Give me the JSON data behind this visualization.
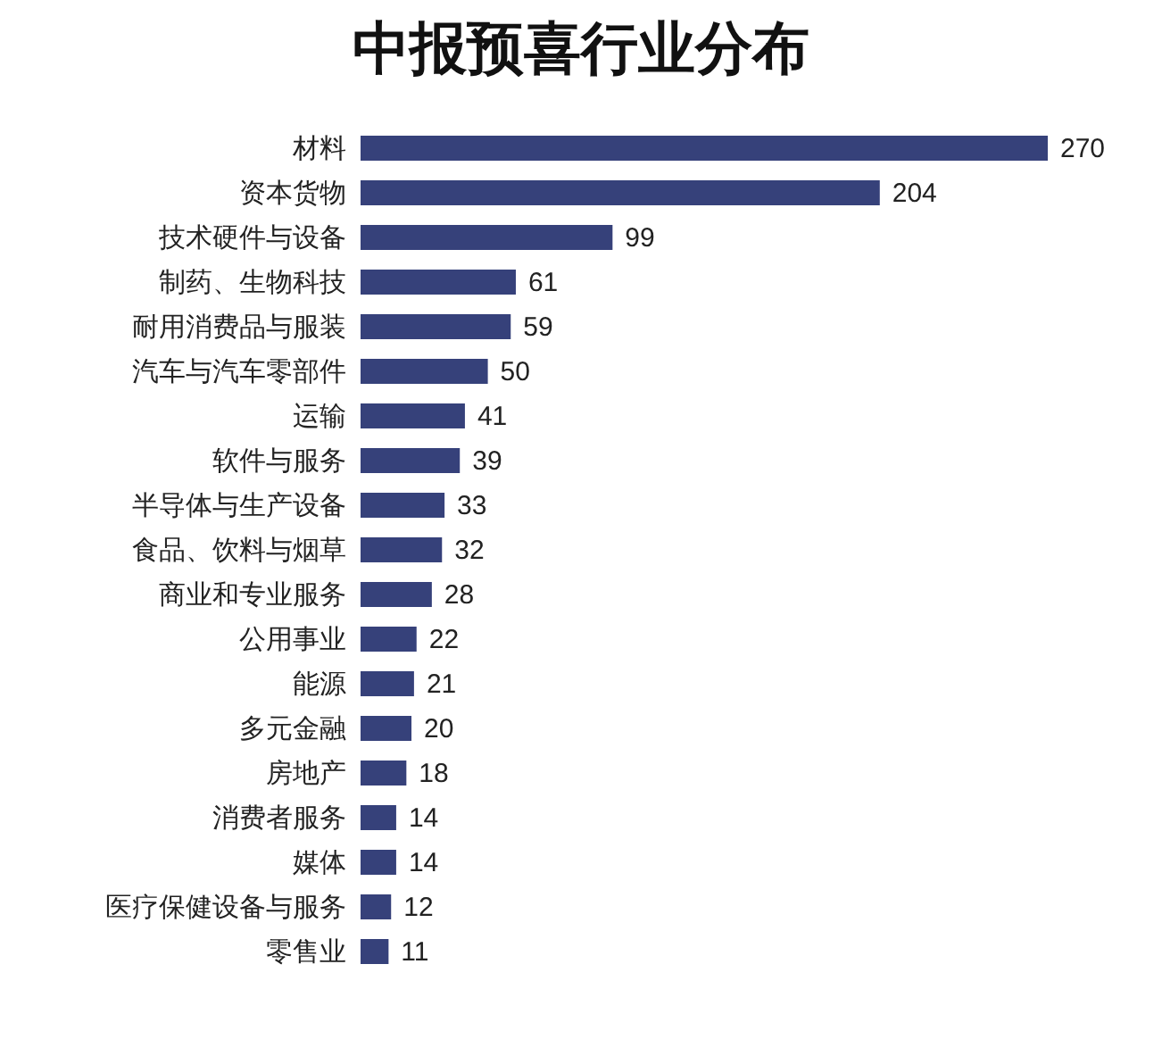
{
  "chart_data": {
    "type": "bar",
    "orientation": "horizontal",
    "title": "中报预喜行业分布",
    "categories": [
      "材料",
      "资本货物",
      "技术硬件与设备",
      "制药、生物科技",
      "耐用消费品与服装",
      "汽车与汽车零部件",
      "运输",
      "软件与服务",
      "半导体与生产设备",
      "食品、饮料与烟草",
      "商业和专业服务",
      "公用事业",
      "能源",
      "多元金融",
      "房地产",
      "消费者服务",
      "媒体",
      "医疗保健设备与服务",
      "零售业"
    ],
    "values": [
      270,
      204,
      99,
      61,
      59,
      50,
      41,
      39,
      33,
      32,
      28,
      22,
      21,
      20,
      18,
      14,
      14,
      12,
      11
    ],
    "color": "#36417a",
    "data_labels": true
  }
}
